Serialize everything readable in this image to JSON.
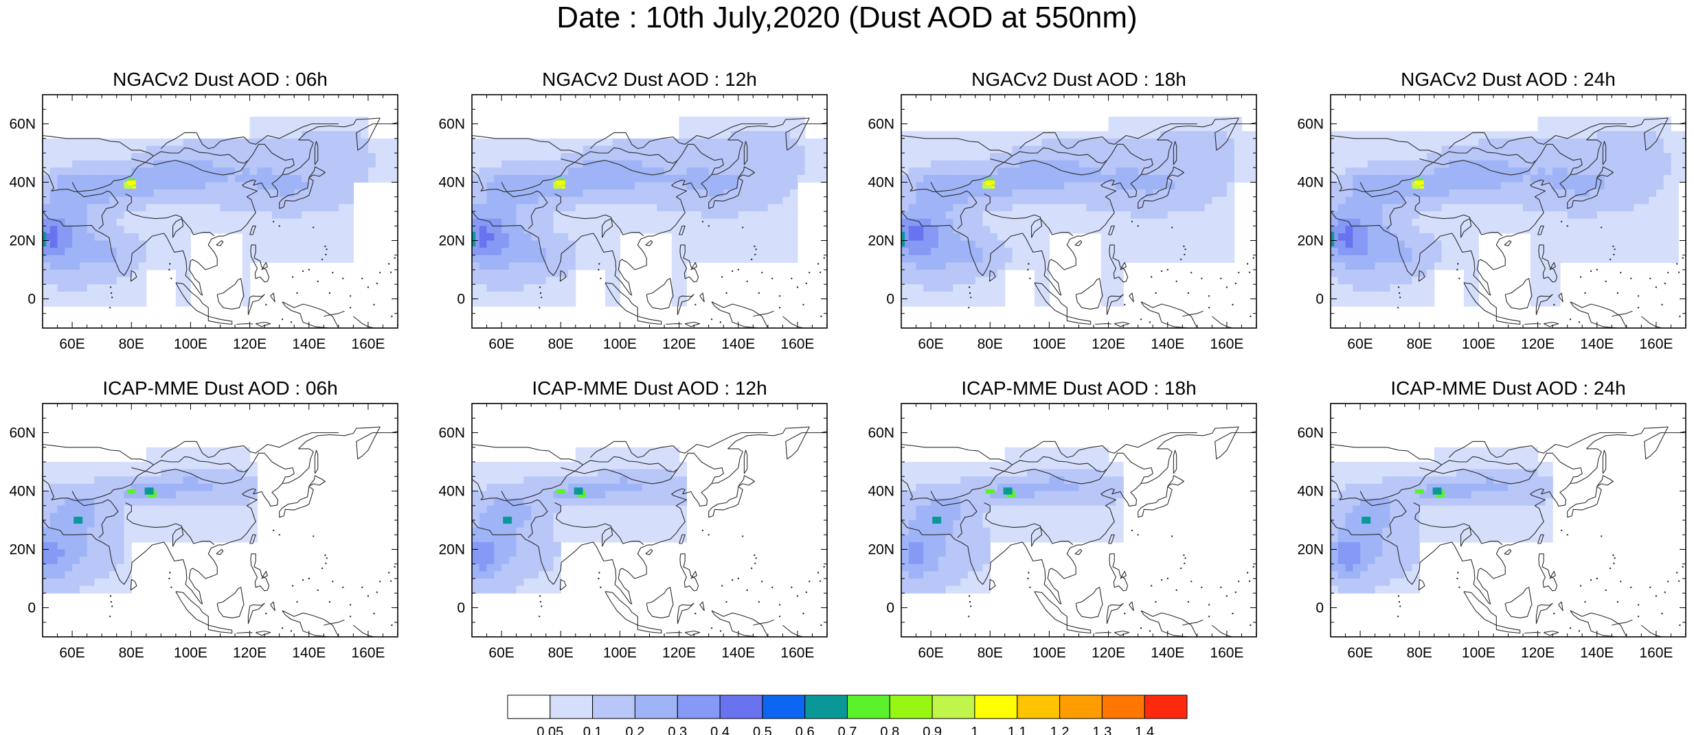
{
  "title": "Date : 10th July,2020 (Dust AOD at 550nm)",
  "colors": {
    "bins": [
      "#ffffff",
      "#d5dffb",
      "#b8c6f8",
      "#9fb4f7",
      "#8599f5",
      "#6a73ef",
      "#0c66f2",
      "#0a9797",
      "#5bf22c",
      "#96f812",
      "#c0f64a",
      "#ffff00",
      "#ffc300",
      "#ff9d00",
      "#ff7603",
      "#ff2a0e"
    ],
    "coast": "#2b2b2b"
  },
  "map": {
    "lon_range": [
      50,
      170
    ],
    "lat_range": [
      -10,
      70
    ],
    "projection": "cylindrical-equidistant"
  },
  "axes": {
    "x_ticks": [
      "60E",
      "80E",
      "100E",
      "120E",
      "140E",
      "160E"
    ],
    "y_ticks": [
      "60N",
      "40N",
      "20N",
      "0"
    ]
  },
  "panels": [
    {
      "title": "NGACv2 Dust AOD : 06h",
      "model": "ngac",
      "hour": 6
    },
    {
      "title": "NGACv2 Dust AOD : 12h",
      "model": "ngac",
      "hour": 12
    },
    {
      "title": "NGACv2 Dust AOD : 18h",
      "model": "ngac",
      "hour": 18
    },
    {
      "title": "NGACv2 Dust AOD : 24h",
      "model": "ngac",
      "hour": 24
    },
    {
      "title": "ICAP-MME Dust AOD : 06h",
      "model": "icap",
      "hour": 6
    },
    {
      "title": "ICAP-MME Dust AOD : 12h",
      "model": "icap",
      "hour": 12
    },
    {
      "title": "ICAP-MME Dust AOD : 18h",
      "model": "icap",
      "hour": 18
    },
    {
      "title": "ICAP-MME Dust AOD : 24h",
      "model": "icap",
      "hour": 24
    }
  ],
  "colorbar": {
    "labels": [
      "0.05",
      "0.1",
      "0.2",
      "0.3",
      "0.4",
      "0.5",
      "0.6",
      "0.7",
      "0.8",
      "0.9",
      "1",
      "1.1",
      "1.2",
      "1.3",
      "1.4"
    ]
  }
}
